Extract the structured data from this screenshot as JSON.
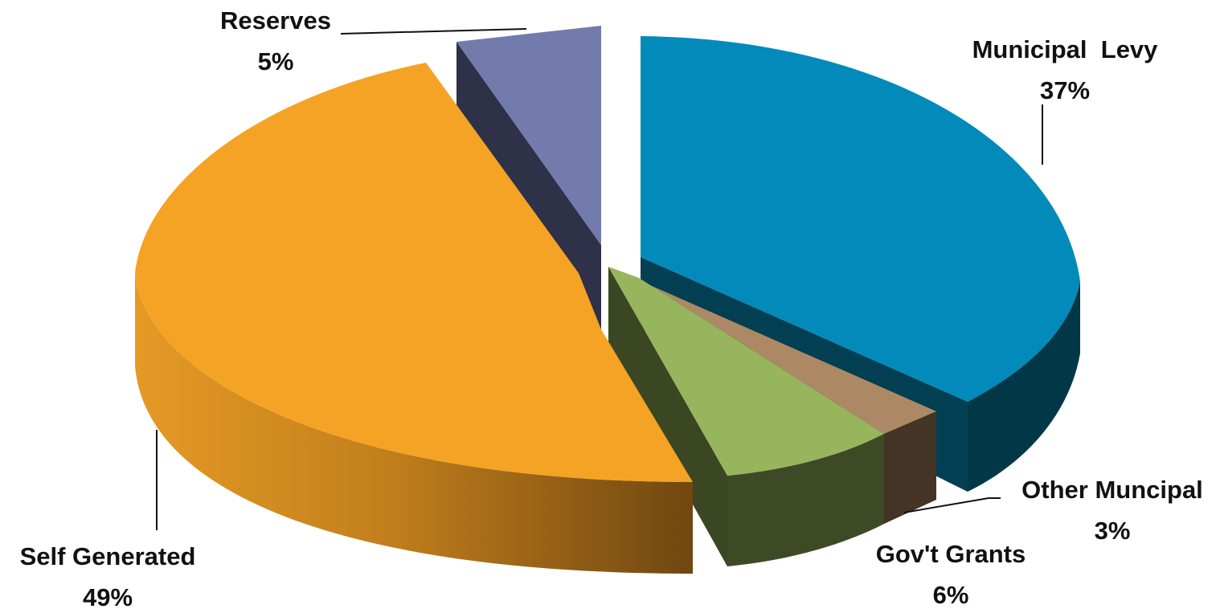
{
  "chart_data": {
    "type": "pie",
    "title": "",
    "slices": [
      {
        "label": "Municipal  Levy",
        "value": 37,
        "value_label": "37%",
        "color": "#028abb",
        "side_color": "#013848"
      },
      {
        "label": "Other Muncipal",
        "value": 3,
        "value_label": "3%",
        "color": "#ac8964",
        "side_color": "#433426"
      },
      {
        "label": "Gov't Grants",
        "value": 6,
        "value_label": "6%",
        "color": "#97b55d",
        "side_color": "#3c4a24"
      },
      {
        "label": "Self Generated",
        "value": 49,
        "value_label": "49%",
        "color": "#f5a324",
        "side_color": "#c07d1c"
      },
      {
        "label": "Reserves",
        "value": 5,
        "value_label": "5%",
        "color": "#737bad",
        "side_color": "#2e3147"
      }
    ],
    "legend": "none",
    "labels": "outside with leader lines"
  }
}
